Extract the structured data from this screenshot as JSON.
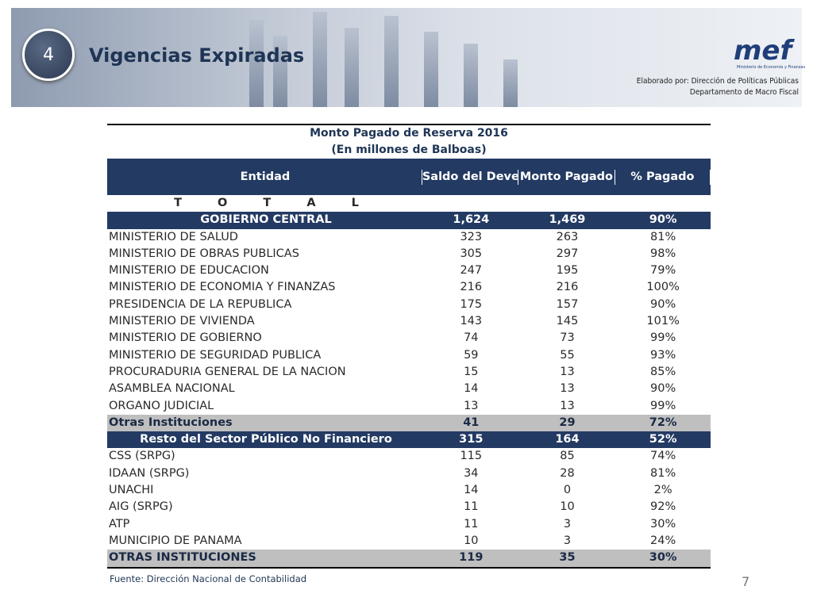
{
  "header": {
    "number": "4",
    "title": "Vigencias Expiradas",
    "logo": "mef",
    "logo_subtitle": "Ministerio de Economía y Finanzas",
    "credit_line1": "Elaborado por: Dirección de Políticas Públicas",
    "credit_line2": "Departamento de Macro Fiscal"
  },
  "table": {
    "title_line1": "Monto Pagado de Reserva 2016",
    "title_line2": "(En millones de Balboas)",
    "columns": [
      "Entidad",
      "Saldo del Devengado",
      "Monto Pagado",
      "% Pagado"
    ],
    "total_label": "T O T A L",
    "rows": [
      [
        "GOBIERNO CENTRAL",
        "1,624",
        "1,469",
        "90%"
      ],
      [
        "MINISTERIO DE SALUD",
        "323",
        "263",
        "81%"
      ],
      [
        "MINISTERIO DE OBRAS PUBLICAS",
        "305",
        "297",
        "98%"
      ],
      [
        "MINISTERIO DE EDUCACION",
        "247",
        "195",
        "79%"
      ],
      [
        "MINISTERIO DE ECONOMIA Y FINANZAS",
        "216",
        "216",
        "100%"
      ],
      [
        "PRESIDENCIA DE LA REPUBLICA",
        "175",
        "157",
        "90%"
      ],
      [
        "MINISTERIO DE VIVIENDA",
        "143",
        "145",
        "101%"
      ],
      [
        "MINISTERIO DE GOBIERNO",
        "74",
        "73",
        "99%"
      ],
      [
        "MINISTERIO DE SEGURIDAD PUBLICA",
        "59",
        "55",
        "93%"
      ],
      [
        "PROCURADURIA GENERAL DE LA NACION",
        "15",
        "13",
        "85%"
      ],
      [
        "ASAMBLEA NACIONAL",
        "14",
        "13",
        "90%"
      ],
      [
        "ORGANO JUDICIAL",
        "13",
        "13",
        "99%"
      ],
      [
        "Otras Instituciones",
        "41",
        "29",
        "72%"
      ],
      [
        "Resto del Sector Público No Financiero",
        "315",
        "164",
        "52%"
      ],
      [
        "CSS (SRPG)",
        "115",
        "85",
        "74%"
      ],
      [
        "IDAAN (SRPG)",
        "34",
        "28",
        "81%"
      ],
      [
        "UNACHI",
        "14",
        "0",
        "2%"
      ],
      [
        "AIG (SRPG)",
        "11",
        "10",
        "92%"
      ],
      [
        "ATP",
        "11",
        "3",
        "30%"
      ],
      [
        "MUNICIPIO DE PANAMA",
        "10",
        "3",
        "24%"
      ],
      [
        "OTRAS INSTITUCIONES",
        "119",
        "35",
        "30%"
      ]
    ]
  },
  "footer": {
    "source": "Fuente: Dirección Nacional de Contabilidad",
    "page": "7"
  }
}
